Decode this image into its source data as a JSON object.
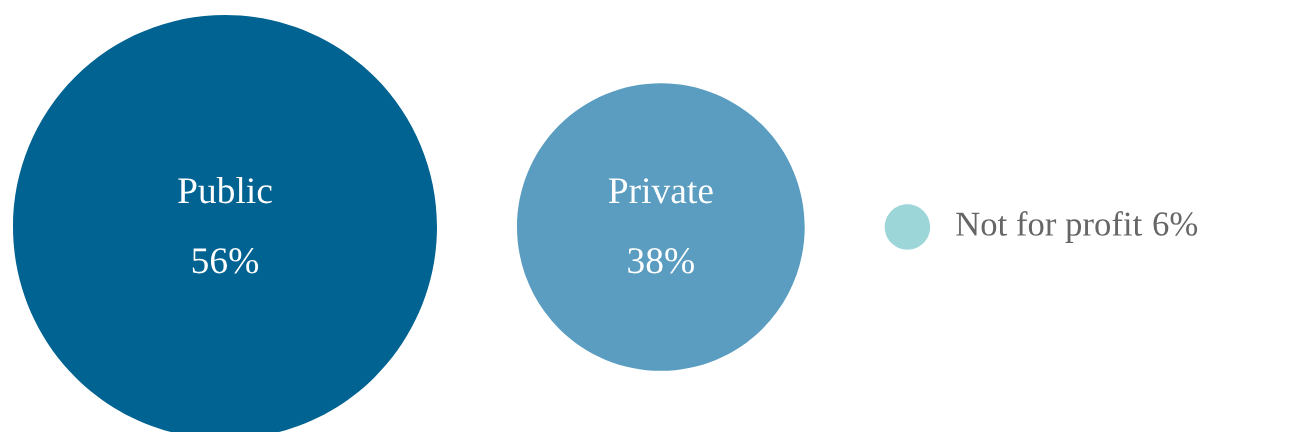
{
  "chart_data": {
    "type": "other",
    "categories": [
      "Public",
      "Private",
      "Not for profit"
    ],
    "values": [
      56,
      38,
      6
    ],
    "value_labels": [
      "56%",
      "38%",
      "6%"
    ],
    "colors": [
      "#006391",
      "#5a9dc0",
      "#9dd6d9"
    ]
  }
}
